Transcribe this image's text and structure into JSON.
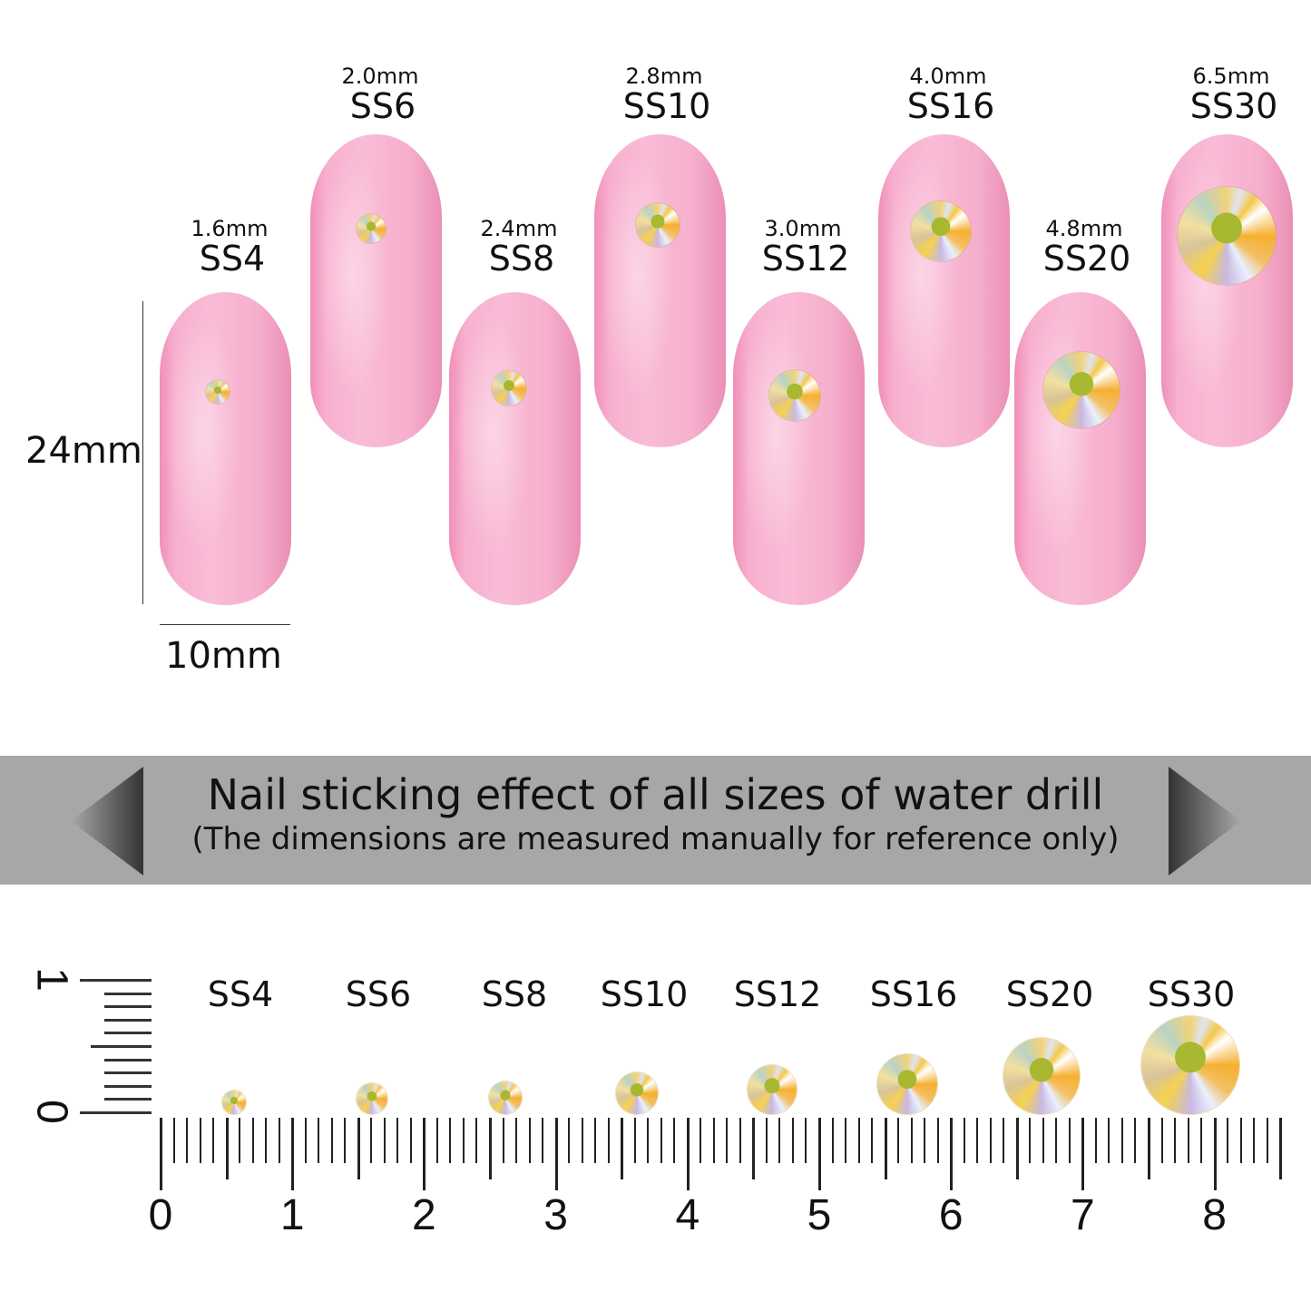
{
  "nails": [
    {
      "size": "SS4",
      "mm": "1.6mm"
    },
    {
      "size": "SS6",
      "mm": "2.0mm"
    },
    {
      "size": "SS8",
      "mm": "2.4mm"
    },
    {
      "size": "SS10",
      "mm": "2.8mm"
    },
    {
      "size": "SS12",
      "mm": "3.0mm"
    },
    {
      "size": "SS16",
      "mm": "4.0mm"
    },
    {
      "size": "SS20",
      "mm": "4.8mm"
    },
    {
      "size": "SS30",
      "mm": "6.5mm"
    }
  ],
  "dimensions": {
    "height": "24mm",
    "width": "10mm"
  },
  "banner": {
    "title": "Nail sticking effect of all sizes of water drill",
    "subtitle": "(The dimensions are measured manually for reference only)",
    "color": "#a7a7a7"
  },
  "ruler": {
    "labels": [
      "SS4",
      "SS6",
      "SS8",
      "SS10",
      "SS12",
      "SS16",
      "SS20",
      "SS30"
    ],
    "numbers": [
      "0",
      "1",
      "2",
      "3",
      "4",
      "5",
      "6",
      "7",
      "8"
    ],
    "vertical_numbers": [
      "0",
      "1"
    ]
  },
  "colors": {
    "nail": "#f7b0cf",
    "gem": "#f5c84a"
  }
}
